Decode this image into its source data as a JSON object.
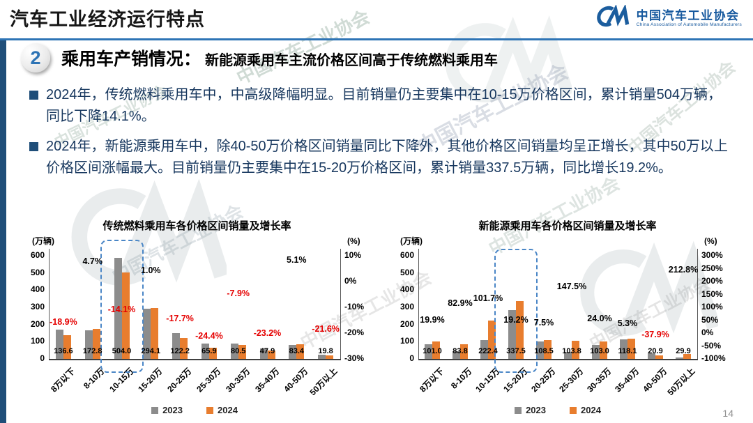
{
  "page": {
    "title": "汽车工业经济运行特点",
    "page_number": "14"
  },
  "logo": {
    "name_cn": "中国汽车工业协会",
    "name_en": "China Association of Automobile Manufacturers"
  },
  "section": {
    "number": "2",
    "title": "乘用车产销情况：",
    "subtitle": "新能源乘用车主流价格区间高于传统燃料乘用车"
  },
  "bullets": [
    {
      "text": "2024年，传统燃料乘用车中，中高级降幅明显。目前销量仍主要集中在10-15万价格区间，累计销量504万辆，同比下降14.1%。"
    },
    {
      "text": "2024年，新能源乘用车中，除40-50万价格区间销量同比下降外，其他价格区间销量均呈正增长，其中50万以上价格区间涨幅最大。目前销量仍主要集中在15-20万价格区间，累计销量337.5万辆，同比增长19.2%。"
    }
  ],
  "watermark": {
    "text_cn": "中国汽车工业协会",
    "text_en": "China Association of Automobile Manufacturers"
  },
  "colors": {
    "bar_2023": "#8C8C8C",
    "bar_2024": "#E87D2E",
    "negative_label": "#E50000",
    "positive_label": "#000000",
    "accent_blue": "#2E74B5",
    "stripe_blue": "#1F4E79",
    "highlight_dash": "#4A86C6"
  },
  "chart_data": [
    {
      "type": "bar",
      "title": "传统燃料乘用车各价格区间销量及增长率",
      "unit_left": "(万辆)",
      "unit_right": "(%)",
      "categories": [
        "8万以下",
        "8-10万",
        "10-15万",
        "15-20万",
        "20-25万",
        "25-30万",
        "30-35万",
        "35-40万",
        "40-50万",
        "50万以上"
      ],
      "series": [
        {
          "name": "2023",
          "color": "#8C8C8C",
          "values": [
            168.4,
            165.0,
            586.7,
            291.2,
            148.5,
            87.2,
            87.4,
            62.4,
            79.4,
            25.3
          ]
        },
        {
          "name": "2024",
          "color": "#E87D2E",
          "values": [
            136.6,
            172.8,
            504.0,
            294.1,
            122.2,
            65.9,
            80.5,
            47.9,
            83.4,
            19.8
          ]
        }
      ],
      "value_labels": [
        "136.6",
        "172.8",
        "504.0",
        "294.1",
        "122.2",
        "65.9",
        "80.5",
        "47.9",
        "83.4",
        "19.8"
      ],
      "growth": [
        {
          "label": "-18.9%",
          "value": -18.9
        },
        {
          "label": "4.7%",
          "value": 4.7
        },
        {
          "label": "-14.1%",
          "value": -14.1
        },
        {
          "label": "1.0%",
          "value": 1.0
        },
        {
          "label": "-17.7%",
          "value": -17.7
        },
        {
          "label": "-24.4%",
          "value": -24.4
        },
        {
          "label": "-7.9%",
          "value": -7.9
        },
        {
          "label": "-23.2%",
          "value": -23.2
        },
        {
          "label": "5.1%",
          "value": 5.1
        },
        {
          "label": "-21.6%",
          "value": -21.6
        }
      ],
      "ylim_left": [
        0,
        600
      ],
      "yticks_left": [
        "600",
        "500",
        "400",
        "300",
        "200",
        "100",
        "0"
      ],
      "ylim_right": [
        -30,
        10
      ],
      "yticks_right": [
        "10%",
        "0%",
        "-10%",
        "-20%",
        "-30%"
      ],
      "highlight_category": "10-15万",
      "highlight_index": 2,
      "legend": [
        {
          "label": "2023",
          "color": "#8C8C8C"
        },
        {
          "label": "2024",
          "color": "#E87D2E"
        }
      ]
    },
    {
      "type": "bar",
      "title": "新能源乘用车各价格区间销量及增长率",
      "unit_left": "(万辆)",
      "unit_right": "(%)",
      "categories": [
        "8万以下",
        "8-10万",
        "10-15万",
        "15-20万",
        "20-25万",
        "25-30万",
        "30-35万",
        "35-40万",
        "40-50万",
        "50万以上"
      ],
      "series": [
        {
          "name": "2023",
          "color": "#8C8C8C",
          "values": [
            84.2,
            45.8,
            110.3,
            283.1,
            100.9,
            41.9,
            83.1,
            112.2,
            33.7,
            9.6
          ]
        },
        {
          "name": "2024",
          "color": "#E87D2E",
          "values": [
            101.0,
            83.8,
            222.4,
            337.5,
            108.5,
            103.8,
            103.0,
            118.1,
            20.9,
            29.9
          ]
        }
      ],
      "value_labels": [
        "101.0",
        "83.8",
        "222.4",
        "337.5",
        "108.5",
        "103.8",
        "103.0",
        "118.1",
        "20.9",
        "29.9"
      ],
      "growth": [
        {
          "label": "19.9%",
          "value": 19.9
        },
        {
          "label": "82.9%",
          "value": 82.9
        },
        {
          "label": "101.7%",
          "value": 101.7
        },
        {
          "label": "19.2%",
          "value": 19.2
        },
        {
          "label": "7.5%",
          "value": 7.5
        },
        {
          "label": "147.5%",
          "value": 147.5
        },
        {
          "label": "24.0%",
          "value": 24.0
        },
        {
          "label": "5.3%",
          "value": 5.3
        },
        {
          "label": "-37.9%",
          "value": -37.9
        },
        {
          "label": "212.8%",
          "value": 212.8
        }
      ],
      "ylim_left": [
        0,
        600
      ],
      "yticks_left": [
        "600",
        "500",
        "400",
        "300",
        "200",
        "100",
        "0"
      ],
      "ylim_right": [
        -100,
        300
      ],
      "yticks_right": [
        "300%",
        "250%",
        "200%",
        "150%",
        "100%",
        "50%",
        "0%",
        "-50%",
        "-100%"
      ],
      "highlight_category": "15-20万",
      "highlight_index": 3,
      "legend": [
        {
          "label": "2023",
          "color": "#8C8C8C"
        },
        {
          "label": "2024",
          "color": "#E87D2E"
        }
      ]
    }
  ]
}
